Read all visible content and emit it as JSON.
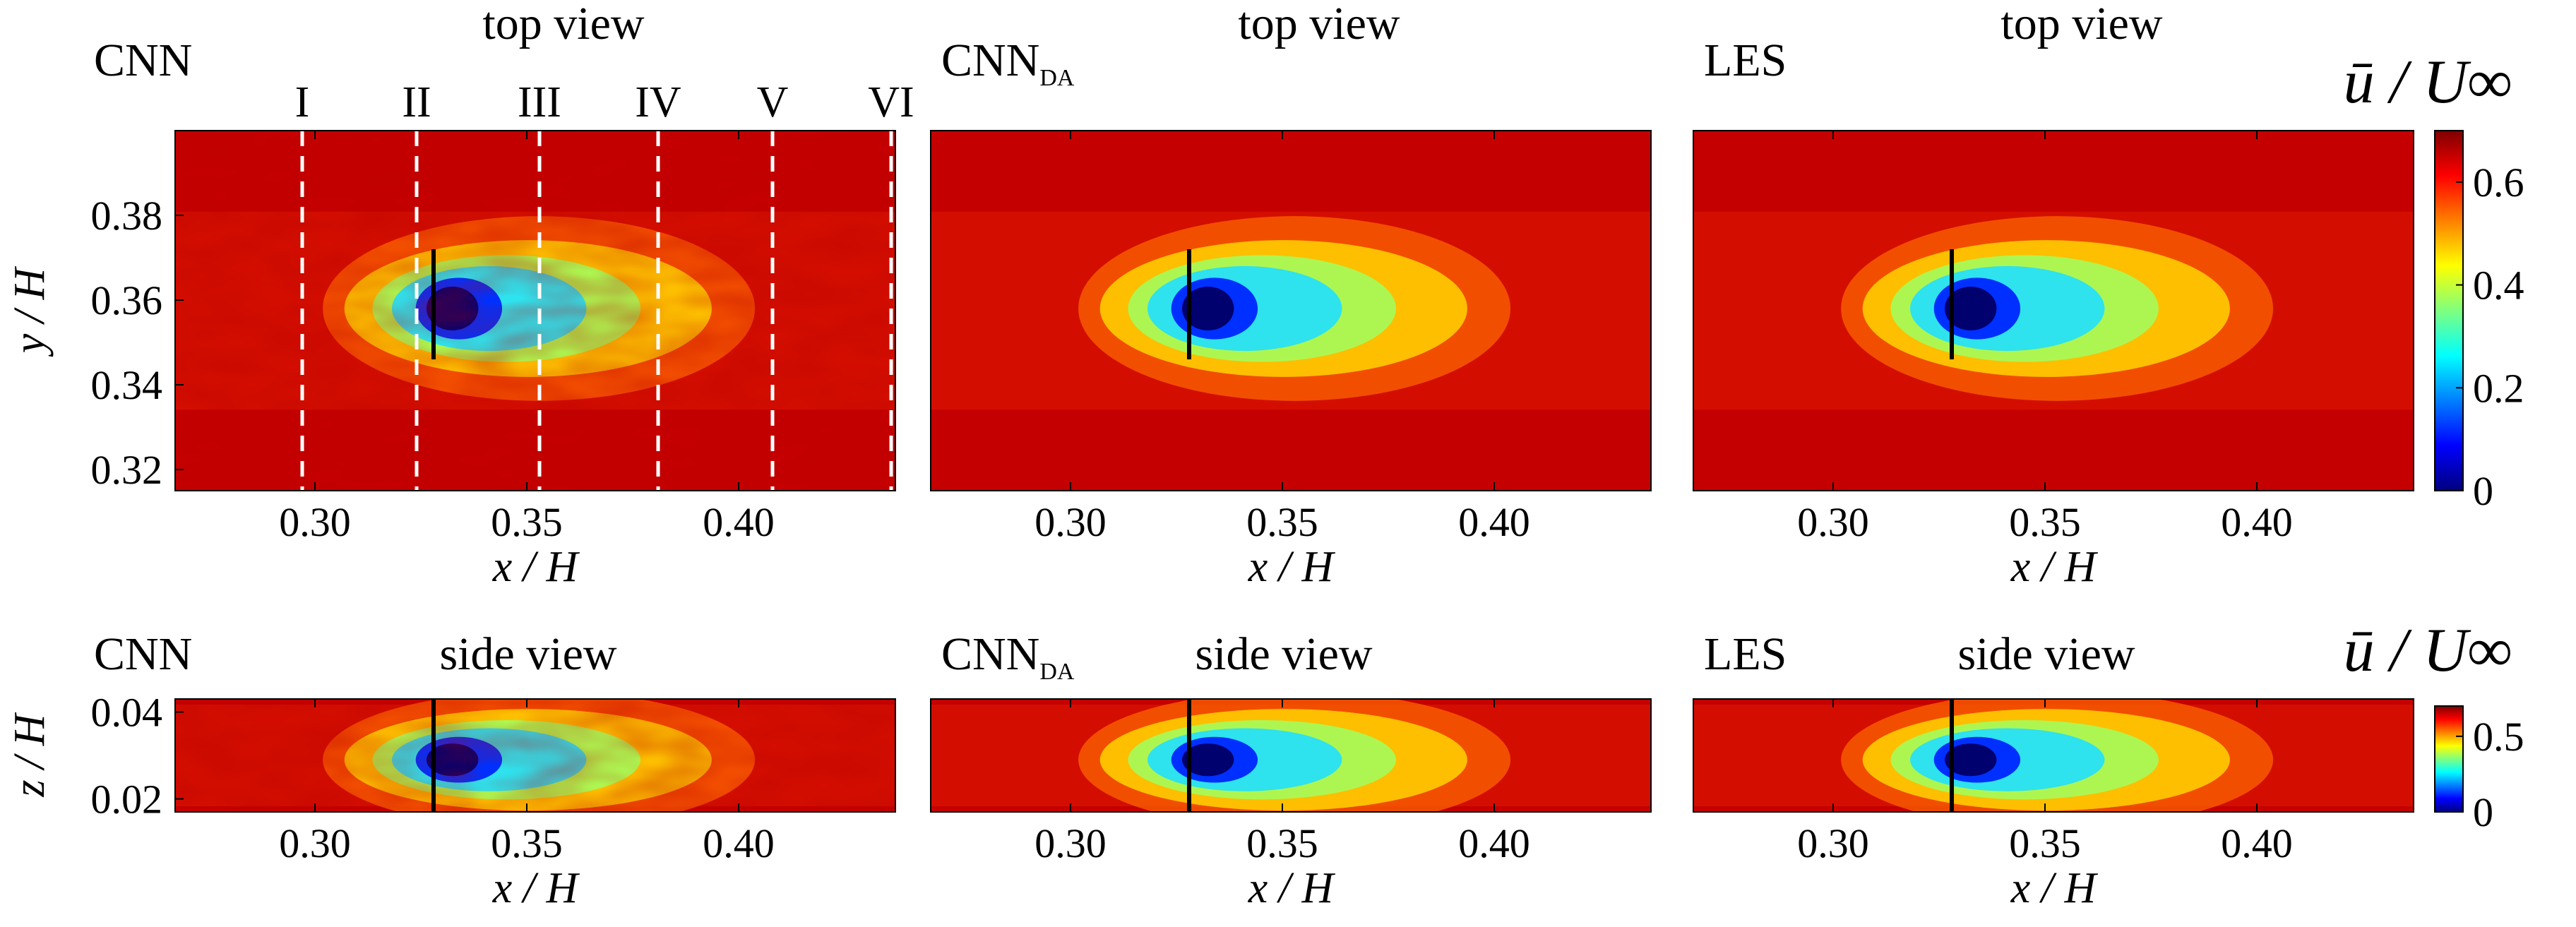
{
  "colors": {
    "colormap": [
      "#00007f",
      "#0000ff",
      "#007fff",
      "#00ffff",
      "#7fff7f",
      "#ffff00",
      "#ff7f00",
      "#ff0000",
      "#7f0000"
    ],
    "rod": "#000000",
    "section_line": "#ffffff"
  },
  "chart_data": [
    {
      "type": "heatmap",
      "id": "cnn-top",
      "method": "CNN",
      "subscript": "",
      "view": "top view",
      "xlabel": "x / H",
      "ylabel": "y / H",
      "xlim": [
        0.267,
        0.437
      ],
      "ylim": [
        0.315,
        0.4
      ],
      "xticks": [
        0.3,
        0.35,
        0.4
      ],
      "xtick_labels": [
        "0.30",
        "0.35",
        "0.40"
      ],
      "yticks": [
        0.32,
        0.34,
        0.36,
        0.38
      ],
      "ytick_labels": [
        "0.32",
        "0.34",
        "0.36",
        "0.38"
      ],
      "obstacle": {
        "x": 0.328,
        "y_range": [
          0.346,
          0.372
        ]
      },
      "wake": {
        "center": [
          0.335,
          0.358
        ],
        "extent": 0.045,
        "noise": true
      },
      "sections": [
        {
          "label": "I",
          "x": 0.297
        },
        {
          "label": "II",
          "x": 0.324
        },
        {
          "label": "III",
          "x": 0.353
        },
        {
          "label": "IV",
          "x": 0.381
        },
        {
          "label": "V",
          "x": 0.408
        },
        {
          "label": "VI",
          "x": 0.436
        }
      ]
    },
    {
      "type": "heatmap",
      "id": "cnnda-top",
      "method": "CNN",
      "subscript": "DA",
      "view": "top view",
      "xlabel": "",
      "ylabel": "",
      "xlim": [
        0.267,
        0.437
      ],
      "ylim": [
        0.315,
        0.4
      ],
      "xticks": [
        0.3,
        0.35,
        0.4
      ],
      "xtick_labels": [
        "0.30",
        "0.35",
        "0.40"
      ],
      "obstacle": {
        "x": 0.328,
        "y_range": [
          0.346,
          0.372
        ]
      },
      "wake": {
        "center": [
          0.335,
          0.358
        ],
        "extent": 0.045,
        "noise": false
      }
    },
    {
      "type": "heatmap",
      "id": "les-top",
      "method": "LES",
      "subscript": "",
      "view": "top view",
      "xlabel": "",
      "ylabel": "",
      "xlim": [
        0.267,
        0.437
      ],
      "ylim": [
        0.315,
        0.4
      ],
      "xticks": [
        0.3,
        0.35,
        0.4
      ],
      "xtick_labels": [
        "0.30",
        "0.35",
        "0.40"
      ],
      "obstacle": {
        "x": 0.328,
        "y_range": [
          0.346,
          0.372
        ]
      },
      "wake": {
        "center": [
          0.335,
          0.358
        ],
        "extent": 0.045,
        "noise": false
      }
    },
    {
      "type": "heatmap",
      "id": "cnn-side",
      "method": "CNN",
      "subscript": "",
      "view": "side view",
      "xlabel": "x / H",
      "ylabel": "z / H",
      "xlim": [
        0.267,
        0.437
      ],
      "ylim": [
        0.017,
        0.043
      ],
      "xticks": [
        0.3,
        0.35,
        0.4
      ],
      "xtick_labels": [
        "0.30",
        "0.35",
        "0.40"
      ],
      "yticks": [
        0.02,
        0.04
      ],
      "ytick_labels": [
        "0.02",
        "0.04"
      ],
      "obstacle": {
        "x": 0.328,
        "y_range": [
          0.017,
          0.043
        ]
      },
      "wake": {
        "center": [
          0.335,
          0.029
        ],
        "extent": 0.045,
        "noise": true
      }
    },
    {
      "type": "heatmap",
      "id": "cnnda-side",
      "method": "CNN",
      "subscript": "DA",
      "view": "side view",
      "xlabel": "",
      "ylabel": "",
      "xlim": [
        0.267,
        0.437
      ],
      "ylim": [
        0.017,
        0.043
      ],
      "xticks": [
        0.3,
        0.35,
        0.4
      ],
      "xtick_labels": [
        "0.30",
        "0.35",
        "0.40"
      ],
      "obstacle": {
        "x": 0.328,
        "y_range": [
          0.017,
          0.043
        ]
      },
      "wake": {
        "center": [
          0.335,
          0.029
        ],
        "extent": 0.045,
        "noise": false
      }
    },
    {
      "type": "heatmap",
      "id": "les-side",
      "method": "LES",
      "subscript": "",
      "view": "side view",
      "xlabel": "",
      "ylabel": "",
      "xlim": [
        0.267,
        0.437
      ],
      "ylim": [
        0.017,
        0.043
      ],
      "xticks": [
        0.3,
        0.35,
        0.4
      ],
      "xtick_labels": [
        "0.30",
        "0.35",
        "0.40"
      ],
      "obstacle": {
        "x": 0.328,
        "y_range": [
          0.017,
          0.043
        ]
      },
      "wake": {
        "center": [
          0.335,
          0.029
        ],
        "extent": 0.045,
        "noise": false
      }
    }
  ],
  "axis_titles": {
    "x_label": "x / H"
  },
  "colorbars": [
    {
      "id": "cb-top",
      "label": "ū / U∞",
      "range": [
        0,
        0.7
      ],
      "ticks": [
        0,
        0.2,
        0.4,
        0.6
      ],
      "tick_labels": [
        "0",
        "0.2",
        "0.4",
        "0.6"
      ]
    },
    {
      "id": "cb-side",
      "label": "ū / U∞",
      "range": [
        0,
        0.7
      ],
      "ticks": [
        0,
        0.5
      ],
      "tick_labels": [
        "0",
        "0.5"
      ]
    }
  ]
}
